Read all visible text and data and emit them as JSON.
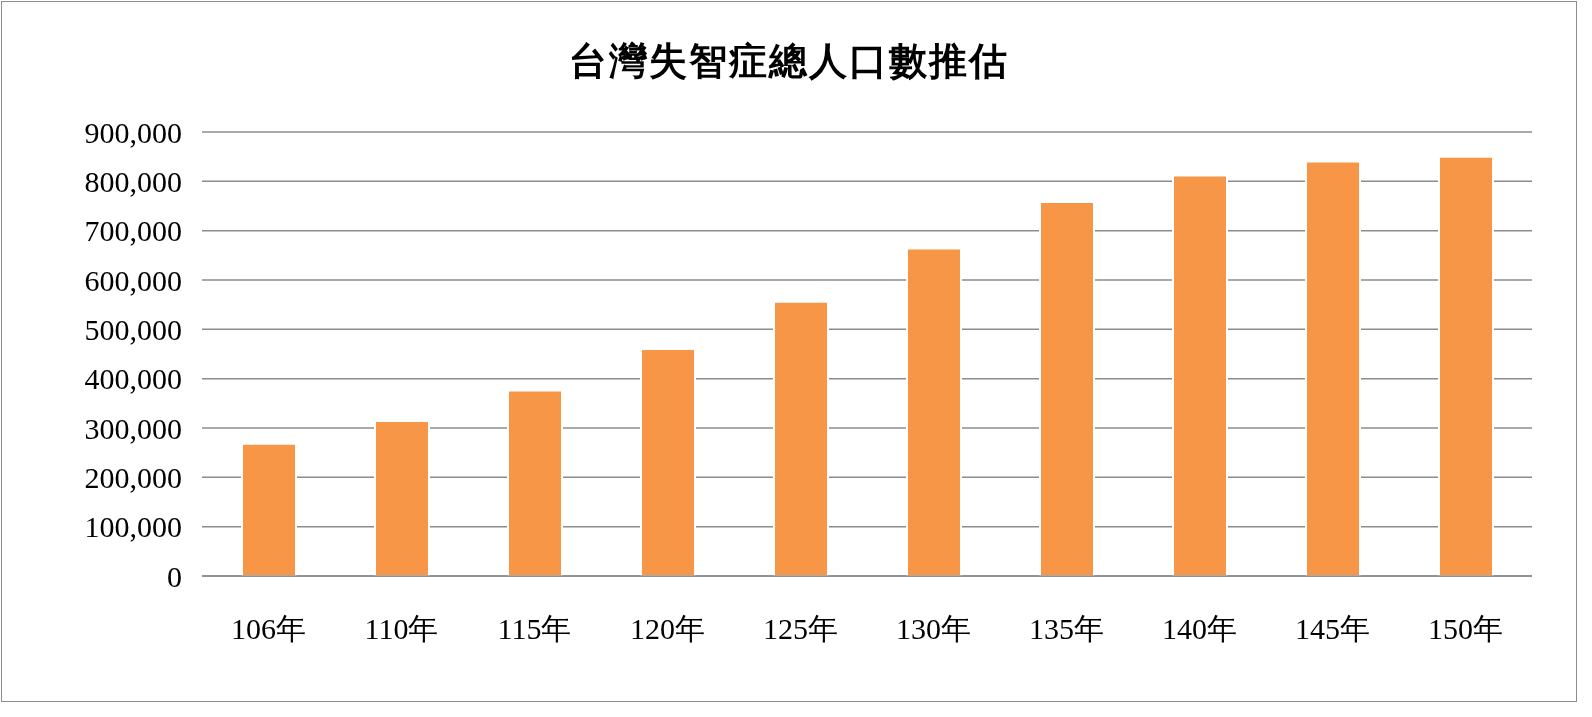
{
  "chart_data": {
    "type": "bar",
    "title": "台灣失智症總人口數推估",
    "categories": [
      "106年",
      "110年",
      "115年",
      "120年",
      "125年",
      "130年",
      "135年",
      "140年",
      "145年",
      "150年"
    ],
    "values": [
      268000,
      314000,
      376000,
      460000,
      556000,
      664000,
      758000,
      812000,
      840000,
      850000
    ],
    "color": "#f79646",
    "ylim": [
      0,
      900000
    ],
    "yticks": [
      0,
      {
        "value": 100000,
        "label": "100,000"
      },
      {
        "value": 200000,
        "label": "200,000"
      },
      {
        "value": 300000,
        "label": "300,000"
      },
      {
        "value": 400000,
        "label": "400,000"
      },
      {
        "value": 500000,
        "label": "500,000"
      },
      {
        "value": 600000,
        "label": "600,000"
      },
      {
        "value": 700000,
        "label": "700,000"
      },
      {
        "value": 800000,
        "label": "800,000"
      },
      {
        "value": 900000,
        "label": "900,000"
      }
    ],
    "grid": "y"
  }
}
